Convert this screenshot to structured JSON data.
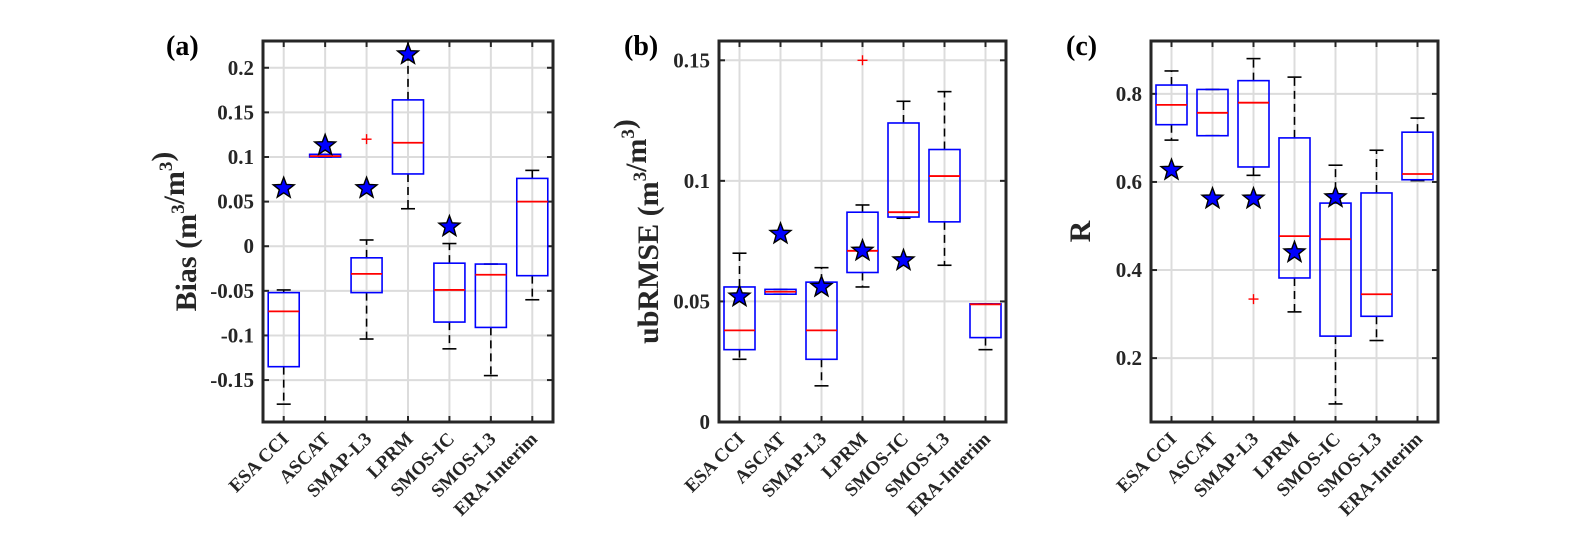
{
  "figure": {
    "colors": {
      "box": "#0000ff",
      "median": "#ff0000",
      "whisker": "#000000",
      "outlier": "#ff0000",
      "star_fill": "#0000ff",
      "star_edge": "#000000",
      "grid": "#dcdcdc",
      "axis": "#262626"
    }
  },
  "chart_data": [
    {
      "type": "box",
      "panel_label": "(a)",
      "title": "",
      "xlabel": "",
      "ylabel": "Bias (m3/m3)",
      "ylabel_parts": {
        "main": "Bias (m",
        "sup1": "3",
        "mid": "/m",
        "sup2": "3",
        "end": ")"
      },
      "ylim": [
        -0.197,
        0.23
      ],
      "yticks": [
        -0.15,
        -0.1,
        -0.05,
        0,
        0.05,
        0.1,
        0.15,
        0.2
      ],
      "ytick_labels": [
        "-0.15",
        "-0.1",
        "-0.05",
        "0",
        "0.05",
        "0.1",
        "0.15",
        "0.2"
      ],
      "grid": true,
      "categories": [
        "ESA CCI",
        "ASCAT",
        "SMAP-L3",
        "LPRM",
        "SMOS-IC",
        "SMOS-L3",
        "ERA-Interim"
      ],
      "boxes": [
        {
          "whisker_low": -0.177,
          "q1": -0.135,
          "median": -0.073,
          "q3": -0.052,
          "whisker_high": -0.049,
          "outliers": [],
          "star": 0.065
        },
        {
          "whisker_low": 0.1,
          "q1": 0.1,
          "median": 0.101,
          "q3": 0.103,
          "whisker_high": 0.103,
          "outliers": [],
          "star": 0.113
        },
        {
          "whisker_low": -0.104,
          "q1": -0.052,
          "median": -0.031,
          "q3": -0.013,
          "whisker_high": 0.007,
          "outliers": [
            0.12
          ],
          "star": 0.065
        },
        {
          "whisker_low": 0.042,
          "q1": 0.081,
          "median": 0.116,
          "q3": 0.164,
          "whisker_high": 0.215,
          "outliers": [],
          "star": 0.215
        },
        {
          "whisker_low": -0.115,
          "q1": -0.085,
          "median": -0.049,
          "q3": -0.019,
          "whisker_high": 0.003,
          "outliers": [],
          "star": 0.022
        },
        {
          "whisker_low": -0.145,
          "q1": -0.091,
          "median": -0.032,
          "q3": -0.02,
          "whisker_high": -0.02,
          "outliers": [],
          "star": null
        },
        {
          "whisker_low": -0.06,
          "q1": -0.033,
          "median": 0.05,
          "q3": 0.076,
          "whisker_high": 0.085,
          "outliers": [],
          "star": null
        }
      ]
    },
    {
      "type": "box",
      "panel_label": "(b)",
      "title": "",
      "xlabel": "",
      "ylabel": "ubRMSE (m3/m3)",
      "ylabel_parts": {
        "main": "ubRMSE (m",
        "sup1": "3",
        "mid": "/m",
        "sup2": "3",
        "end": ")"
      },
      "ylim": [
        0,
        0.158
      ],
      "yticks": [
        0,
        0.05,
        0.1,
        0.15
      ],
      "ytick_labels": [
        "0",
        "0.05",
        "0.1",
        "0.15"
      ],
      "grid": true,
      "categories": [
        "ESA CCI",
        "ASCAT",
        "SMAP-L3",
        "LPRM",
        "SMOS-IC",
        "SMOS-L3",
        "ERA-Interim"
      ],
      "boxes": [
        {
          "whisker_low": 0.026,
          "q1": 0.03,
          "median": 0.038,
          "q3": 0.056,
          "whisker_high": 0.07,
          "outliers": [],
          "star": 0.052
        },
        {
          "whisker_low": 0.053,
          "q1": 0.053,
          "median": 0.054,
          "q3": 0.055,
          "whisker_high": 0.055,
          "outliers": [],
          "star": 0.078
        },
        {
          "whisker_low": 0.015,
          "q1": 0.026,
          "median": 0.038,
          "q3": 0.058,
          "whisker_high": 0.064,
          "outliers": [],
          "star": 0.056
        },
        {
          "whisker_low": 0.056,
          "q1": 0.062,
          "median": 0.071,
          "q3": 0.087,
          "whisker_high": 0.09,
          "outliers": [
            0.15
          ],
          "star": 0.071
        },
        {
          "whisker_low": 0.0845,
          "q1": 0.085,
          "median": 0.087,
          "q3": 0.124,
          "whisker_high": 0.133,
          "outliers": [],
          "star": 0.067
        },
        {
          "whisker_low": 0.065,
          "q1": 0.083,
          "median": 0.102,
          "q3": 0.113,
          "whisker_high": 0.137,
          "outliers": [],
          "star": null
        },
        {
          "whisker_low": 0.03,
          "q1": 0.035,
          "median": 0.0488,
          "q3": 0.049,
          "whisker_high": 0.049,
          "outliers": [],
          "star": null
        }
      ]
    },
    {
      "type": "box",
      "panel_label": "(c)",
      "title": "",
      "xlabel": "",
      "ylabel": "R",
      "ylabel_parts": {
        "main": "R",
        "sup1": "",
        "mid": "",
        "sup2": "",
        "end": ""
      },
      "ylim": [
        0.055,
        0.92
      ],
      "yticks": [
        0.2,
        0.4,
        0.6,
        0.8
      ],
      "ytick_labels": [
        "0.2",
        "0.4",
        "0.6",
        "0.8"
      ],
      "grid": true,
      "categories": [
        "ESA CCI",
        "ASCAT",
        "SMAP-L3",
        "LPRM",
        "SMOS-IC",
        "SMOS-L3",
        "ERA-Interim"
      ],
      "boxes": [
        {
          "whisker_low": 0.695,
          "q1": 0.73,
          "median": 0.775,
          "q3": 0.82,
          "whisker_high": 0.852,
          "outliers": [],
          "star": 0.627
        },
        {
          "whisker_low": 0.705,
          "q1": 0.705,
          "median": 0.757,
          "q3": 0.81,
          "whisker_high": 0.81,
          "outliers": [],
          "star": 0.562
        },
        {
          "whisker_low": 0.615,
          "q1": 0.634,
          "median": 0.78,
          "q3": 0.83,
          "whisker_high": 0.88,
          "outliers": [
            0.334
          ],
          "star": 0.562
        },
        {
          "whisker_low": 0.305,
          "q1": 0.382,
          "median": 0.477,
          "q3": 0.7,
          "whisker_high": 0.838,
          "outliers": [],
          "star": 0.44
        },
        {
          "whisker_low": 0.096,
          "q1": 0.25,
          "median": 0.47,
          "q3": 0.552,
          "whisker_high": 0.638,
          "outliers": [],
          "star": 0.565
        },
        {
          "whisker_low": 0.24,
          "q1": 0.295,
          "median": 0.345,
          "q3": 0.575,
          "whisker_high": 0.672,
          "outliers": [],
          "star": null
        },
        {
          "whisker_low": 0.603,
          "q1": 0.605,
          "median": 0.618,
          "q3": 0.713,
          "whisker_high": 0.745,
          "outliers": [],
          "star": null
        }
      ]
    }
  ]
}
